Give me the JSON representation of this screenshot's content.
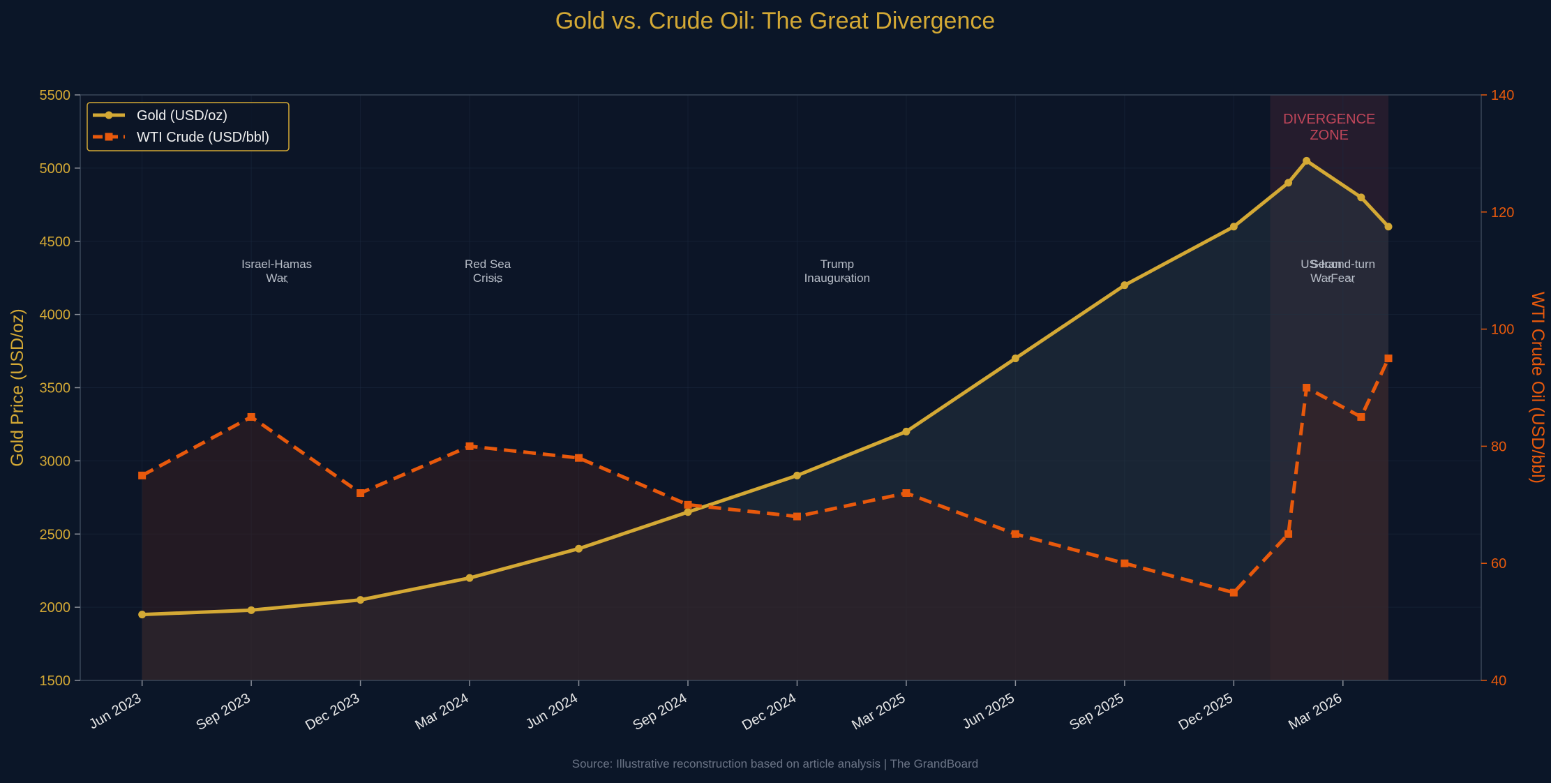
{
  "chart_data": {
    "type": "line",
    "title": "Gold vs. Crude Oil: The Great Divergence",
    "x": [
      "2023-06",
      "2023-09",
      "2023-12",
      "2024-03",
      "2024-06",
      "2024-09",
      "2024-12",
      "2025-03",
      "2025-06",
      "2025-09",
      "2025-12",
      "2026-02",
      "2026-03",
      "2026-05",
      "2026-06"
    ],
    "x_numeric": [
      0,
      3,
      6,
      9,
      12,
      15,
      18,
      21,
      24,
      27,
      30,
      31.5,
      32,
      33.5,
      34
    ],
    "x_tick_labels": [
      "Jun 2023",
      "Sep 2023",
      "Dec 2023",
      "Mar 2024",
      "Jun 2024",
      "Sep 2024",
      "Dec 2024",
      "Mar 2025",
      "Jun 2025",
      "Sep 2025",
      "Dec 2025",
      "Mar 2026"
    ],
    "x_tick_positions": [
      0,
      3,
      6,
      9,
      12,
      15,
      18,
      21,
      24,
      27,
      30,
      33
    ],
    "xlim": [
      -1.7,
      36.8
    ],
    "series": [
      {
        "name": "Gold (USD/oz)",
        "axis": "left",
        "color": "#d4a935",
        "style": "solid",
        "marker": "circle",
        "x": [
          0,
          3,
          6,
          9,
          12,
          15,
          18,
          21,
          24,
          27,
          30,
          31.5,
          32,
          33.5,
          34.25
        ],
        "values": [
          1950,
          1980,
          2050,
          2200,
          2400,
          2650,
          2900,
          3200,
          3700,
          4200,
          4600,
          4900,
          5050,
          4800,
          4600
        ]
      },
      {
        "name": "WTI Crude (USD/bbl)",
        "axis": "right",
        "color": "#e8590c",
        "style": "dashed",
        "marker": "square",
        "x": [
          0,
          3,
          6,
          9,
          12,
          15,
          18,
          21,
          24,
          27,
          30,
          31.5,
          32,
          33.5,
          34.25
        ],
        "values": [
          75,
          85,
          72,
          80,
          78,
          70,
          68,
          72,
          65,
          60,
          55,
          65,
          90,
          85,
          95
        ]
      }
    ],
    "ylabel": "Gold Price (USD/oz)",
    "ylim": [
      1500,
      5500
    ],
    "y_ticks": [
      "1500",
      "2000",
      "2500",
      "3000",
      "3500",
      "4000",
      "4500",
      "5000",
      "5500"
    ],
    "y2label": "WTI Crude Oil (USD/bbl)",
    "y2lim": [
      40,
      140
    ],
    "y2_ticks": [
      "40",
      "60",
      "80",
      "100",
      "120",
      "140"
    ],
    "divergence_zone": {
      "x_start": 31,
      "x_end": 34.25,
      "label_line1": "DIVERGENCE",
      "label_line2": "ZONE"
    },
    "annotations": [
      {
        "line1": "Israel-Hamas",
        "line2": "War",
        "x": 3.7
      },
      {
        "line1": "Red Sea",
        "line2": "Crisis",
        "x": 9.5
      },
      {
        "line1": "Trump",
        "line2": "Inauguration",
        "x": 19.1
      },
      {
        "line1": "US-Iran",
        "line2": "War",
        "x": 32.4
      },
      {
        "line1": "Second-turn",
        "line2": "Fear",
        "x": 33.0
      }
    ],
    "legend_position": "top-left",
    "source": "Source: Illustrative reconstruction based on article analysis | The GrandBoard",
    "colors": {
      "background": "#0b1628",
      "plot_background": "#0c1527",
      "gold": "#d4a935",
      "oil": "#e8590c",
      "zone_label": "#c0465a",
      "grid": "#1c2a40"
    }
  }
}
